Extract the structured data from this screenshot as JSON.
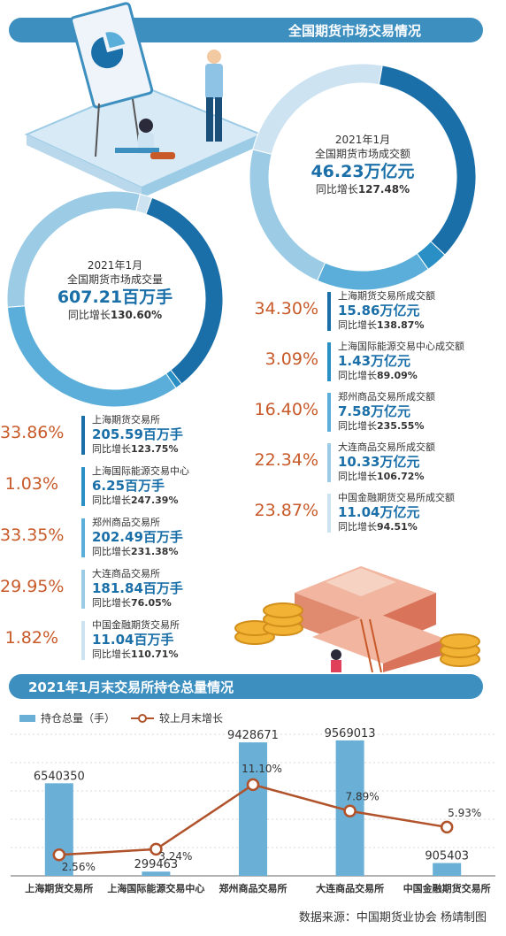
{
  "header": {
    "title": "全国期货市场交易情况"
  },
  "turnover": {
    "line1": "2021年1月",
    "line2": "全国期货市场成交额",
    "total": "46.23万亿元",
    "growth_label": "同比增长",
    "growth_value": "127.48%",
    "colors": [
      "#1a6fa8",
      "#2a8fc4",
      "#5aaed9",
      "#9ccbe6",
      "#cde3f1"
    ],
    "items": [
      {
        "pct": "34.30%",
        "share": 34.3,
        "name": "上海期货交易所成交额",
        "value": "15.86万亿元",
        "growth_label": "同比增长",
        "growth": "138.87%"
      },
      {
        "pct": "3.09%",
        "share": 3.09,
        "name": "上海国际能源交易中心成交额",
        "value": "1.43万亿元",
        "growth_label": "同比增长",
        "growth": "89.09%"
      },
      {
        "pct": "16.40%",
        "share": 16.4,
        "name": "郑州商品交易所成交额",
        "value": "7.58万亿元",
        "growth_label": "同比增长",
        "growth": "235.55%"
      },
      {
        "pct": "22.34%",
        "share": 22.34,
        "name": "大连商品交易所成交额",
        "value": "10.33万亿元",
        "growth_label": "同比增长",
        "growth": "106.72%"
      },
      {
        "pct": "23.87%",
        "share": 23.87,
        "name": "中国金融期货交易所成交额",
        "value": "11.04万亿元",
        "growth_label": "同比增长",
        "growth": "94.51%"
      }
    ]
  },
  "volume": {
    "line1": "2021年1月",
    "line2": "全国期货市场成交量",
    "total": "607.21百万手",
    "growth_label": "同比增长",
    "growth_value": "130.60%",
    "colors": [
      "#1a6fa8",
      "#2a8fc4",
      "#5aaed9",
      "#9ccbe6",
      "#cde3f1"
    ],
    "items": [
      {
        "pct": "33.86%",
        "share": 33.86,
        "name": "上海期货交易所",
        "value": "205.59百万手",
        "growth_label": "同比增长",
        "growth": "123.75%"
      },
      {
        "pct": "1.03%",
        "share": 1.03,
        "name": "上海国际能源交易中心",
        "value": "6.25百万手",
        "growth_label": "同比增长",
        "growth": "247.39%"
      },
      {
        "pct": "33.35%",
        "share": 33.35,
        "name": "郑州商品交易所",
        "value": "202.49百万手",
        "growth_label": "同比增长",
        "growth": "231.38%"
      },
      {
        "pct": "29.95%",
        "share": 29.95,
        "name": "大连商品交易所",
        "value": "181.84百万手",
        "growth_label": "同比增长",
        "growth": "76.05%"
      },
      {
        "pct": "1.82%",
        "share": 1.82,
        "name": "中国金融期货交易所",
        "value": "11.04百万手",
        "growth_label": "同比增长",
        "growth": "110.71%"
      }
    ]
  },
  "chart_data": {
    "type": "bar",
    "title": "2021年1月末交易所持仓总量情况",
    "categories": [
      "上海期货交易所",
      "上海国际能源交易中心",
      "郑州商品交易所",
      "大连商品交易所",
      "中国金融期货交易所"
    ],
    "series": [
      {
        "name": "持仓总量（手）",
        "type": "bar",
        "values": [
          6540350,
          299463,
          9428671,
          9569013,
          905403
        ],
        "labels": [
          "6540350",
          "299463",
          "9428671",
          "9569013",
          "905403"
        ]
      },
      {
        "name": "较上月末增长",
        "type": "line",
        "values": [
          2.56,
          3.24,
          11.1,
          7.89,
          5.93
        ],
        "labels": [
          "2.56%",
          "3.24%",
          "11.10%",
          "7.89%",
          "5.93%"
        ]
      }
    ],
    "legend": "top-left",
    "grid": true,
    "colors": {
      "bar": "#6aafd6",
      "line": "#b0522a"
    }
  },
  "footer": {
    "source": "数据来源：中国期货业协会  杨靖制图"
  }
}
